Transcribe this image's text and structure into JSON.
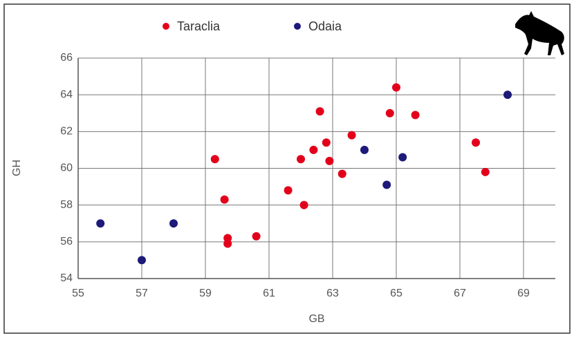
{
  "chart_data": {
    "type": "scatter",
    "x_label": "GB",
    "y_label": "GH",
    "xlim": [
      55,
      70
    ],
    "xticks": [
      55,
      57,
      59,
      61,
      63,
      65,
      67,
      69
    ],
    "ylim": [
      54,
      66
    ],
    "yticks": [
      54,
      56,
      58,
      60,
      62,
      64,
      66
    ],
    "grid": true,
    "legend": "top",
    "series": [
      {
        "name": "Taraclia",
        "color": "#e3001b",
        "x": [
          59.3,
          59.6,
          59.7,
          59.7,
          60.6,
          61.6,
          62.1,
          62.0,
          62.4,
          62.6,
          62.8,
          62.9,
          63.3,
          63.6,
          64.8,
          65.0,
          65.6,
          67.5,
          67.8
        ],
        "y": [
          60.5,
          58.3,
          56.2,
          55.9,
          56.3,
          58.8,
          58.0,
          60.5,
          61.0,
          63.1,
          61.4,
          60.4,
          59.7,
          61.8,
          63.0,
          64.4,
          62.9,
          61.4,
          59.8
        ]
      },
      {
        "name": "Odaia",
        "color": "#1d1a7a",
        "x": [
          55.7,
          57.0,
          58.0,
          64.0,
          64.7,
          65.2,
          68.5
        ],
        "y": [
          57.0,
          55.0,
          57.0,
          61.0,
          59.1,
          60.6,
          64.0
        ]
      }
    ]
  }
}
